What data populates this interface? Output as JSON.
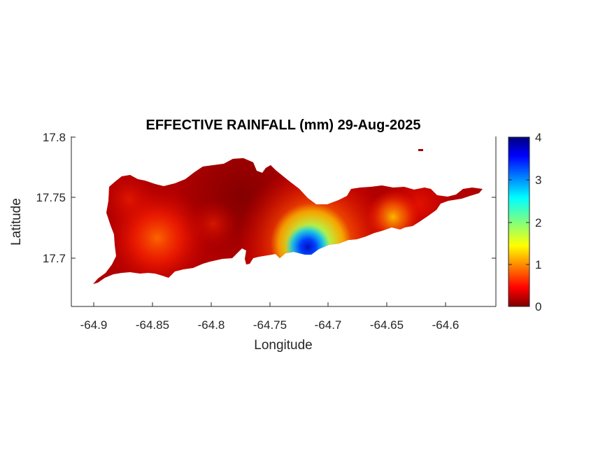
{
  "map": {
    "title": "EFFECTIVE RAINFALL (mm) 29-Aug-2025",
    "xlabel": "Longitude",
    "ylabel": "Latitude",
    "x_ticks": [
      "-64.9",
      "-64.85",
      "-64.8",
      "-64.75",
      "-64.7",
      "-64.65",
      "-64.6"
    ],
    "y_ticks": [
      "17.8",
      "17.75",
      "17.7"
    ],
    "colorbar": {
      "ticks": [
        "4",
        "3",
        "2",
        "1",
        "0"
      ],
      "range": [
        0,
        4
      ],
      "colormap": "jet"
    }
  }
}
